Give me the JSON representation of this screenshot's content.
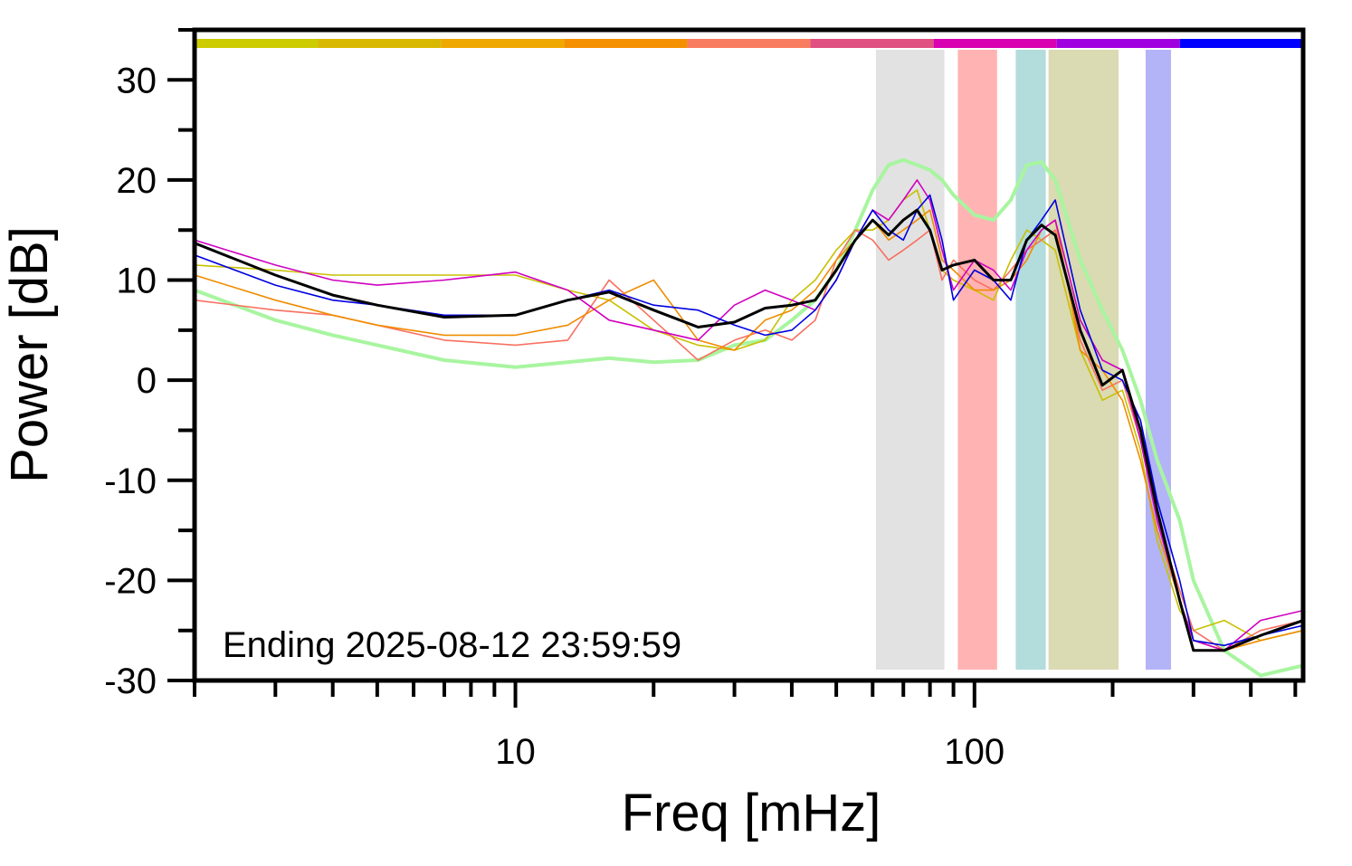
{
  "chart_data": {
    "type": "line",
    "xlabel": "Freq [mHz]",
    "ylabel": "Power [dB]",
    "annotation": "Ending 2025-08-12 23:59:59",
    "xscale": "log",
    "xlim": [
      2,
      520
    ],
    "ylim": [
      -30,
      35
    ],
    "xticks": [
      10,
      100
    ],
    "xminor_ticks": [
      2,
      3,
      4,
      5,
      6,
      7,
      8,
      9,
      20,
      30,
      40,
      50,
      60,
      70,
      80,
      90,
      200,
      300,
      400,
      500
    ],
    "yticks": [
      -30,
      -20,
      -10,
      0,
      10,
      20,
      30
    ],
    "yminor_ticks": [
      -25,
      -15,
      -5,
      5,
      15,
      25,
      35
    ],
    "top_bar_colors": [
      "#cccc00",
      "#d8b800",
      "#eea800",
      "#f59000",
      "#f87c60",
      "#e05080",
      "#d800b0",
      "#a000e0",
      "#0000ff"
    ],
    "bands": [
      {
        "x": [
          61,
          86
        ],
        "color": "#e2e2e2"
      },
      {
        "x": [
          92,
          112
        ],
        "color": "#ffb3b3"
      },
      {
        "x": [
          123,
          143
        ],
        "color": "#b3dcdc"
      },
      {
        "x": [
          145,
          206
        ],
        "color": "#dadab3"
      },
      {
        "x": [
          236,
          268
        ],
        "color": "#b3b3f8"
      }
    ],
    "x": [
      2,
      3,
      4,
      5,
      7,
      10,
      13,
      16,
      20,
      25,
      30,
      35,
      40,
      45,
      50,
      55,
      60,
      65,
      70,
      75,
      80,
      85,
      90,
      100,
      110,
      120,
      130,
      140,
      150,
      170,
      190,
      210,
      230,
      250,
      280,
      300,
      350,
      420,
      520
    ],
    "series": [
      {
        "color": "#a8f5a0",
        "width": 4,
        "values": [
          9,
          6,
          4.5,
          3.5,
          2,
          1.3,
          1.8,
          2.2,
          1.8,
          2,
          3.5,
          4,
          6,
          8,
          11,
          15,
          19,
          21.5,
          22,
          21.5,
          21,
          20,
          18.5,
          16.5,
          16,
          18,
          21.5,
          21.8,
          20,
          12,
          7,
          3,
          -2,
          -8,
          -14,
          -20,
          -27,
          -29.5,
          -28.5
        ]
      },
      {
        "color": "#c8c000",
        "width": 1.6,
        "values": [
          11.5,
          11,
          10.5,
          10.5,
          10.5,
          10.5,
          9,
          8,
          5,
          3.5,
          3,
          4,
          8,
          10,
          13,
          15,
          15,
          16,
          18,
          19,
          15,
          11,
          10,
          9,
          8,
          12,
          15,
          14,
          13,
          3,
          -2,
          -1,
          -7,
          -16,
          -23,
          -25,
          -24,
          -26,
          -25
        ]
      },
      {
        "color": "#f87060",
        "width": 1.6,
        "values": [
          8,
          7,
          6.5,
          5.5,
          4,
          3.5,
          4,
          10,
          6,
          2,
          4,
          5,
          4,
          6,
          12,
          15,
          14,
          12,
          13,
          14,
          15,
          10,
          12,
          10,
          9,
          11,
          13,
          14,
          15,
          4,
          -1,
          0,
          -6,
          -14,
          -21,
          -25,
          -27,
          -25,
          -24
        ]
      },
      {
        "color": "#f08c00",
        "width": 1.6,
        "values": [
          10.5,
          8,
          6.5,
          5.5,
          4.5,
          4.5,
          5.5,
          8,
          10,
          4,
          3,
          6,
          7,
          9,
          12,
          14,
          16,
          14,
          15,
          16,
          17,
          12,
          11,
          9,
          9,
          10,
          12,
          15,
          16,
          3,
          1,
          -2,
          -8,
          -15,
          -22,
          -26,
          -27,
          -26,
          -25
        ]
      },
      {
        "color": "#d000c0",
        "width": 1.6,
        "values": [
          14,
          11.5,
          10,
          9.5,
          10,
          10.8,
          9,
          6,
          5,
          4,
          7.5,
          9,
          8,
          7,
          10,
          14,
          17,
          16,
          18,
          20,
          18,
          13,
          9,
          12,
          11,
          9,
          13,
          15,
          16,
          6,
          2,
          1,
          -6,
          -14,
          -22,
          -26,
          -27,
          -24,
          -23
        ]
      },
      {
        "color": "#0000e0",
        "width": 1.6,
        "values": [
          12.5,
          9.5,
          8,
          7.5,
          6.5,
          6.5,
          8,
          9,
          7.5,
          7,
          5.5,
          4.5,
          5,
          7,
          10,
          14,
          17,
          15,
          14,
          17,
          18.5,
          14,
          8,
          11,
          10,
          8,
          14,
          16,
          18,
          7,
          1,
          0,
          -4,
          -12,
          -20,
          -26,
          -26.5,
          -25.5,
          -24.5
        ]
      },
      {
        "color": "#000000",
        "width": 3,
        "values": [
          13.7,
          10.5,
          8.5,
          7.5,
          6.3,
          6.5,
          8,
          8.8,
          7,
          5.3,
          5.8,
          7.2,
          7.5,
          8,
          11,
          14,
          16,
          14.5,
          16,
          17,
          15,
          11,
          11.5,
          12,
          10,
          10,
          14,
          15.5,
          14.5,
          5,
          -0.5,
          1,
          -5,
          -13,
          -22,
          -27,
          -27,
          -25.5,
          -24
        ]
      }
    ]
  }
}
